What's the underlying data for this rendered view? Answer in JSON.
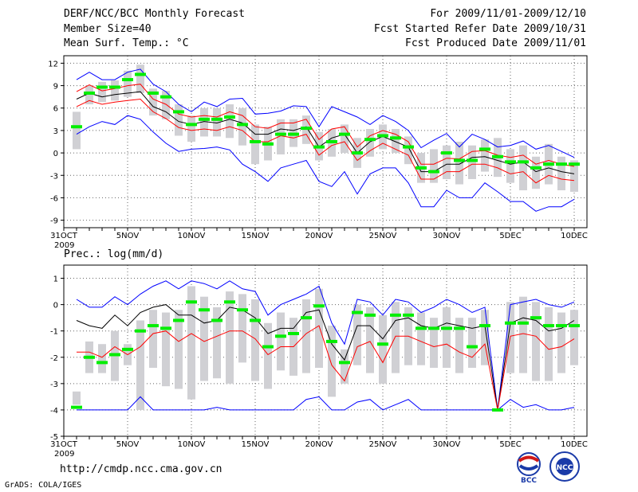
{
  "header": {
    "title": "DERF/NCC/BCC Monthly Forecast",
    "member_size": "Member Size=40",
    "variable": "Mean Surf. Temp.: °C",
    "period": "For 2009/11/01-2009/12/10",
    "started": "Fcst Started Refer Date 2009/10/31",
    "produced": "Fcst Produced Date 2009/11/01"
  },
  "footer": {
    "url": "http://cmdp.ncc.cma.gov.cn",
    "grads": "GrADS: COLA/IGES",
    "logo_bcc": "BCC",
    "logo_ncc": "NCC"
  },
  "colors": {
    "envelope": "#0000ff",
    "percentile": "#ff0000",
    "median": "#000000",
    "box": "#d0d0d4",
    "mean": "#00ee00",
    "grid": "#666666"
  },
  "chart_data": [
    {
      "type": "line",
      "title": "Mean Surf. Temp.: °C",
      "x": [
        1,
        2,
        3,
        4,
        5,
        6,
        7,
        8,
        9,
        10,
        11,
        12,
        13,
        14,
        15,
        16,
        17,
        18,
        19,
        20,
        21,
        22,
        23,
        24,
        25,
        26,
        27,
        28,
        29,
        30,
        31,
        32,
        33,
        34,
        35,
        36,
        37,
        38,
        39,
        40
      ],
      "x_tick_labels": [
        "31OCT",
        "5NOV",
        "10NOV",
        "15NOV",
        "20NOV",
        "25NOV",
        "30NOV",
        "5DEC",
        "10DEC"
      ],
      "x_year_label": "2009",
      "ylim": [
        -10,
        13
      ],
      "y_ticks": [
        12,
        9,
        6,
        3,
        0,
        -3,
        -6,
        -9
      ],
      "grid": true,
      "series": [
        {
          "name": "max",
          "values": [
            9.8,
            10.8,
            9.8,
            9.8,
            10.8,
            11.2,
            9.2,
            8.2,
            6.5,
            5.5,
            6.8,
            6.2,
            7.2,
            7.3,
            5.2,
            5.3,
            5.6,
            6.3,
            6.2,
            3.5,
            6.2,
            5.5,
            4.8,
            3.8,
            5.0,
            4.2,
            3.0,
            0.7,
            1.7,
            2.6,
            0.8,
            2.5,
            1.8,
            0.8,
            1.0,
            1.6,
            0.5,
            1.0,
            0.2,
            -0.6
          ]
        },
        {
          "name": "p90",
          "values": [
            8.2,
            9.1,
            8.3,
            8.6,
            9.0,
            9.2,
            7.2,
            6.5,
            5.2,
            4.8,
            5.0,
            4.8,
            5.5,
            5.0,
            3.5,
            3.3,
            4.0,
            4.0,
            4.5,
            1.8,
            3.2,
            3.5,
            0.8,
            2.3,
            3.0,
            2.5,
            1.5,
            -1.5,
            -1.5,
            -0.7,
            -0.8,
            0.2,
            0.3,
            -0.3,
            -0.6,
            -0.3,
            -1.5,
            -1.0,
            -1.5,
            -1.8
          ]
        },
        {
          "name": "median",
          "values": [
            7.2,
            8.0,
            7.5,
            7.8,
            8.0,
            8.2,
            6.2,
            5.5,
            4.2,
            3.8,
            4.2,
            4.0,
            4.5,
            4.0,
            2.5,
            2.5,
            3.2,
            3.0,
            3.5,
            0.8,
            2.0,
            2.5,
            0.0,
            1.5,
            2.2,
            1.5,
            0.8,
            -2.5,
            -2.5,
            -1.5,
            -1.5,
            -0.6,
            -0.5,
            -1.0,
            -1.5,
            -1.2,
            -2.5,
            -2.0,
            -2.5,
            -2.8
          ]
        },
        {
          "name": "p10",
          "values": [
            6.2,
            7.0,
            6.5,
            6.8,
            7.0,
            7.2,
            5.5,
            4.6,
            3.4,
            3.0,
            3.2,
            3.0,
            3.5,
            3.0,
            1.5,
            1.5,
            2.3,
            2.0,
            2.5,
            -0.3,
            1.0,
            1.5,
            -1.0,
            0.3,
            1.3,
            0.5,
            -0.3,
            -3.5,
            -3.5,
            -2.5,
            -2.5,
            -1.5,
            -1.5,
            -2.0,
            -2.8,
            -2.5,
            -4.0,
            -3.0,
            -3.5,
            -3.7
          ]
        },
        {
          "name": "min",
          "values": [
            2.5,
            3.5,
            4.2,
            3.8,
            5.0,
            4.5,
            2.8,
            1.3,
            0.2,
            0.5,
            0.6,
            0.8,
            0.4,
            -1.5,
            -2.5,
            -3.8,
            -2.0,
            -1.5,
            -1.0,
            -3.8,
            -4.5,
            -2.5,
            -5.5,
            -2.8,
            -2.0,
            -2.0,
            -4.0,
            -7.2,
            -7.2,
            -5.0,
            -6.0,
            -6.0,
            -4.0,
            -5.2,
            -6.5,
            -6.5,
            -7.8,
            -7.2,
            -7.2,
            -6.2
          ]
        },
        {
          "name": "mean",
          "values": [
            3.5,
            8.0,
            8.8,
            8.8,
            9.8,
            10.5,
            8.0,
            7.5,
            5.5,
            3.8,
            4.5,
            4.5,
            4.8,
            3.8,
            1.5,
            1.2,
            2.5,
            2.5,
            3.3,
            0.8,
            1.5,
            2.5,
            0.0,
            1.8,
            2.3,
            2.0,
            0.8,
            -2.0,
            -2.5,
            0.0,
            -1.0,
            -1.0,
            0.5,
            -0.5,
            -1.2,
            -1.2,
            -2.0,
            -1.5,
            -1.5,
            -1.5
          ]
        }
      ],
      "boxes": {
        "name": "interquartile range",
        "low": [
          0.5,
          6.5,
          6.8,
          7.0,
          7.5,
          8.0,
          5.0,
          4.5,
          2.3,
          1.5,
          2.2,
          2.2,
          2.0,
          1.0,
          -1.5,
          -1.0,
          -0.2,
          0.8,
          1.2,
          -1.0,
          -0.5,
          0.0,
          -2.0,
          -0.5,
          0.5,
          0.0,
          -1.5,
          -4.0,
          -4.0,
          -3.5,
          -4.2,
          -3.5,
          -2.5,
          -3.2,
          -4.0,
          -5.0,
          -4.8,
          -4.2,
          -5.0,
          -5.2
        ],
        "high": [
          5.5,
          9.0,
          9.5,
          9.7,
          11.0,
          11.8,
          8.6,
          8.3,
          6.5,
          5.0,
          6.0,
          6.0,
          6.5,
          6.0,
          3.8,
          3.5,
          4.5,
          4.5,
          5.0,
          2.8,
          3.2,
          3.8,
          2.0,
          3.2,
          3.8,
          3.2,
          2.2,
          0.0,
          0.5,
          1.0,
          1.5,
          1.0,
          1.8,
          2.0,
          0.5,
          1.0,
          -0.5,
          1.2,
          -0.5,
          -1.0
        ]
      }
    },
    {
      "type": "line",
      "title": "Prec.: log(mm/d)",
      "x": [
        1,
        2,
        3,
        4,
        5,
        6,
        7,
        8,
        9,
        10,
        11,
        12,
        13,
        14,
        15,
        16,
        17,
        18,
        19,
        20,
        21,
        22,
        23,
        24,
        25,
        26,
        27,
        28,
        29,
        30,
        31,
        32,
        33,
        34,
        35,
        36,
        37,
        38,
        39,
        40
      ],
      "x_tick_labels": [
        "31OCT",
        "5NOV",
        "10NOV",
        "15NOV",
        "20NOV",
        "25NOV",
        "30NOV",
        "5DEC",
        "10DEC"
      ],
      "x_year_label": "2009",
      "ylim": [
        -5,
        1.5
      ],
      "y_ticks": [
        1,
        0,
        -1,
        -2,
        -3,
        -4,
        -5
      ],
      "grid": true,
      "series": [
        {
          "name": "max",
          "values": [
            0.2,
            -0.1,
            -0.1,
            0.3,
            0.0,
            0.4,
            0.7,
            0.9,
            0.6,
            0.9,
            0.8,
            0.6,
            0.9,
            0.6,
            0.5,
            -0.4,
            0.0,
            0.2,
            0.4,
            0.7,
            -0.7,
            -1.5,
            0.2,
            0.1,
            -0.4,
            0.2,
            0.1,
            -0.3,
            -0.1,
            0.2,
            0.0,
            -0.3,
            -0.1,
            -4.0,
            0.0,
            0.1,
            0.2,
            0.0,
            -0.1,
            0.1
          ]
        },
        {
          "name": "median",
          "values": [
            -0.6,
            -0.8,
            -0.9,
            -0.4,
            -0.8,
            -0.3,
            -0.1,
            0.0,
            -0.4,
            -0.4,
            -0.7,
            -0.6,
            -0.1,
            -0.2,
            -0.5,
            -1.1,
            -0.9,
            -0.9,
            -0.3,
            -0.2,
            -1.5,
            -2.1,
            -0.8,
            -0.8,
            -1.3,
            -0.6,
            -0.5,
            -0.8,
            -0.9,
            -0.7,
            -0.8,
            -0.9,
            -0.8,
            -4.0,
            -0.7,
            -0.5,
            -0.6,
            -1.0,
            -0.9,
            -0.6
          ]
        },
        {
          "name": "p10",
          "values": [
            -1.8,
            -1.8,
            -2.0,
            -1.6,
            -1.9,
            -1.6,
            -1.1,
            -1.0,
            -1.4,
            -1.1,
            -1.4,
            -1.2,
            -1.0,
            -1.0,
            -1.3,
            -1.9,
            -1.6,
            -1.6,
            -1.1,
            -0.8,
            -2.3,
            -2.9,
            -1.6,
            -1.4,
            -2.2,
            -1.2,
            -1.2,
            -1.4,
            -1.6,
            -1.5,
            -1.8,
            -2.0,
            -1.5,
            -4.0,
            -1.2,
            -1.1,
            -1.2,
            -1.7,
            -1.6,
            -1.3
          ]
        },
        {
          "name": "min",
          "values": [
            -4.0,
            -4.0,
            -4.0,
            -4.0,
            -4.0,
            -3.5,
            -4.0,
            -4.0,
            -4.0,
            -4.0,
            -4.0,
            -3.9,
            -4.0,
            -4.0,
            -4.0,
            -4.0,
            -4.0,
            -4.0,
            -3.6,
            -3.5,
            -4.0,
            -4.0,
            -3.7,
            -3.6,
            -4.0,
            -3.8,
            -3.6,
            -4.0,
            -4.0,
            -4.0,
            -4.0,
            -4.0,
            -4.0,
            -4.0,
            -3.6,
            -3.9,
            -3.8,
            -4.0,
            -4.0,
            -3.9
          ]
        },
        {
          "name": "mean",
          "values": [
            -3.9,
            -2.0,
            -2.2,
            -1.9,
            -1.7,
            -1.0,
            -0.8,
            -0.9,
            -0.6,
            0.1,
            -0.2,
            -0.6,
            0.1,
            -0.2,
            -0.6,
            -1.6,
            -1.2,
            -1.1,
            -0.5,
            -0.05,
            -1.4,
            -2.2,
            -0.3,
            -0.4,
            -1.5,
            -0.4,
            -0.4,
            -0.9,
            -0.9,
            -0.9,
            -0.9,
            -1.6,
            -0.8,
            -4.0,
            -0.7,
            -0.7,
            -0.5,
            -0.8,
            -0.8,
            -0.8
          ]
        }
      ],
      "boxes": {
        "name": "interquartile range",
        "low": [
          -3.8,
          -2.6,
          -2.6,
          -2.9,
          -2.3,
          -4.0,
          -2.4,
          -3.1,
          -3.2,
          -3.6,
          -2.9,
          -2.8,
          -3.0,
          -2.2,
          -2.9,
          -3.2,
          -2.5,
          -2.7,
          -2.6,
          -2.4,
          -3.5,
          -3.0,
          -2.3,
          -2.6,
          -3.0,
          -2.6,
          -2.3,
          -2.3,
          -2.4,
          -2.4,
          -2.6,
          -2.4,
          -2.3,
          -4.0,
          -2.6,
          -2.6,
          -2.9,
          -2.9,
          -2.6,
          -2.3
        ],
        "high": [
          -3.3,
          -1.4,
          -1.5,
          -1.0,
          -1.5,
          -0.6,
          -0.2,
          -0.3,
          -0.2,
          0.7,
          0.3,
          -0.1,
          0.5,
          0.4,
          0.2,
          -0.7,
          -0.3,
          -0.5,
          0.2,
          0.6,
          -0.8,
          -1.7,
          0.0,
          -0.1,
          -0.4,
          0.1,
          -0.1,
          -0.3,
          -0.5,
          -0.1,
          -0.5,
          -0.5,
          -0.2,
          -4.0,
          0.1,
          0.3,
          0.1,
          -0.1,
          -0.3,
          -0.2
        ]
      }
    }
  ]
}
